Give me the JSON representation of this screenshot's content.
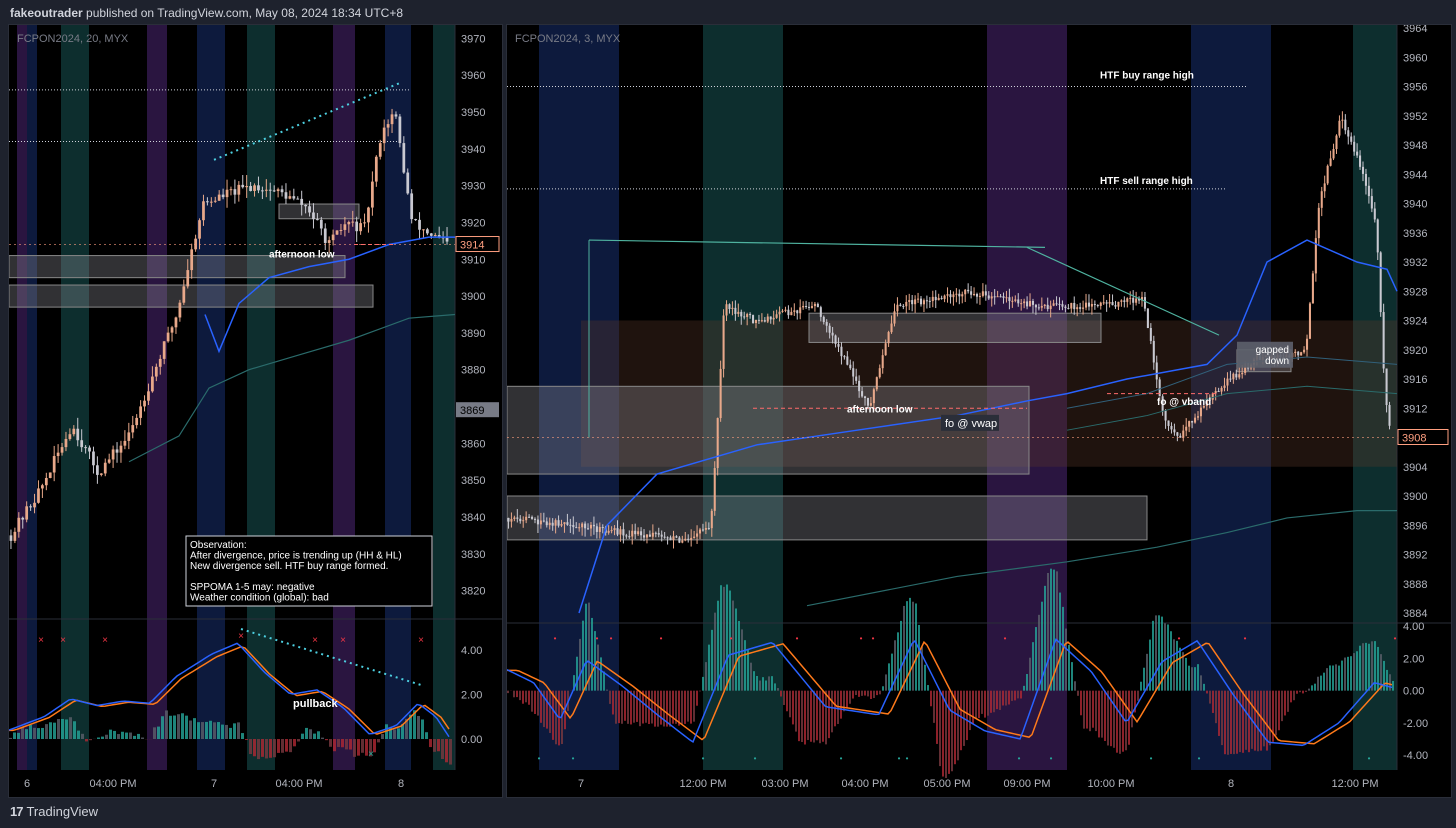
{
  "header": {
    "author": "fakeoutrader",
    "text": "published on TradingView.com, May 08, 2024 18:34 UTC+8"
  },
  "footer": {
    "brand": "TradingView",
    "logo": "tv-logo-icon"
  },
  "colors": {
    "up": "#e8a88a",
    "down": "#c9c9d1",
    "vwap": "#2962ff",
    "band": "#2a6b6b",
    "macd": "#2962ff",
    "signal": "#ff7a1a",
    "price_tag_up": "#ff9f80",
    "price_tag_neutral": "#787b86"
  },
  "chart_data": [
    {
      "type": "candlestick",
      "symbol_label": "FCPON2024, 20, MYX",
      "y_ticks": [
        "3970",
        "3960",
        "3950",
        "3940",
        "3930",
        "3920",
        "3910",
        "3900",
        "3890",
        "3880",
        "3870",
        "3860",
        "3850",
        "3840",
        "3830",
        "3820"
      ],
      "ylim": [
        3815,
        3972
      ],
      "x_ticks": [
        "6",
        "04:00 PM",
        "7",
        "04:00 PM",
        "8"
      ],
      "last_price": "3914",
      "crosshair_price": "3869",
      "annotations": {
        "afternoon_low": "afternoon low",
        "pullback": "pullback"
      },
      "observation": [
        "Observation:",
        "After divergence, price is trending up (HH & HL)",
        "New divergence sell. HTF buy range formed.",
        "",
        "SPPOMA 1-5 may: negative",
        "Weather condition (global): bad"
      ],
      "osc_ticks": [
        "4.00",
        "2.00",
        "0.00"
      ],
      "osc_ylim": [
        -1.3,
        5.2
      ]
    },
    {
      "type": "candlestick",
      "symbol_label": "FCPON2024, 3, MYX",
      "y_ticks": [
        "3964",
        "3960",
        "3956",
        "3952",
        "3948",
        "3944",
        "3940",
        "3936",
        "3932",
        "3928",
        "3924",
        "3920",
        "3916",
        "3912",
        "3908",
        "3904",
        "3900",
        "3896",
        "3892",
        "3888",
        "3884"
      ],
      "ylim": [
        3884,
        3964
      ],
      "x_ticks": [
        "7",
        "12:00 PM",
        "03:00 PM",
        "04:00 PM",
        "05:00 PM",
        "09:00 PM",
        "10:00 PM",
        "8",
        "12:00 PM"
      ],
      "last_price": "3908",
      "annotations": {
        "htf_buy": "HTF buy range high",
        "htf_sell": "HTF sell range high",
        "afternoon_low": "afternoon low",
        "fo_vband": "fo @ vband",
        "fo_vwap": "fo @ vwap",
        "gapped": "gapped",
        "down": "down"
      },
      "osc_ticks": [
        "4.00",
        "2.00",
        "0.00",
        "-2.00",
        "-4.00"
      ],
      "osc_ylim": [
        -4.8,
        4.2
      ]
    }
  ]
}
